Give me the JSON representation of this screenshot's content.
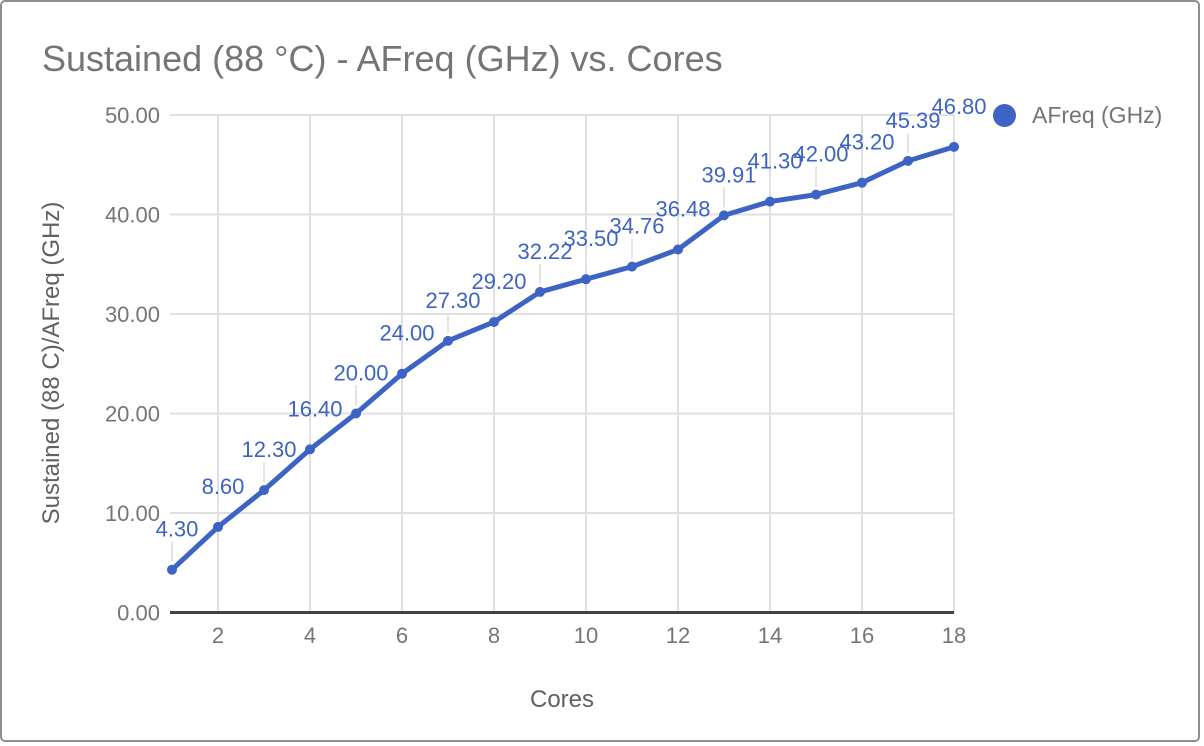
{
  "chart_data": {
    "type": "line",
    "title": "Sustained (88 °C) - AFreq (GHz) vs. Cores",
    "xlabel": "Cores",
    "ylabel": "Sustained (88 C)/AFreq (GHz)",
    "x": [
      1,
      2,
      3,
      4,
      5,
      6,
      7,
      8,
      9,
      10,
      11,
      12,
      13,
      14,
      15,
      16,
      17,
      18
    ],
    "series": [
      {
        "name": "AFreq (GHz)",
        "values": [
          4.3,
          8.6,
          12.3,
          16.4,
          20.0,
          24.0,
          27.3,
          29.2,
          32.22,
          33.5,
          34.76,
          36.48,
          39.91,
          41.3,
          42.0,
          43.2,
          45.39,
          46.8
        ]
      }
    ],
    "data_labels": [
      "4.30",
      "8.60",
      "12.30",
      "16.40",
      "20.00",
      "24.00",
      "27.30",
      "29.20",
      "32.22",
      "33.50",
      "34.76",
      "36.48",
      "39.91",
      "41.30",
      "42.00",
      "43.20",
      "45.39",
      "46.80"
    ],
    "xticks": [
      2,
      4,
      6,
      8,
      10,
      12,
      14,
      16,
      18
    ],
    "yticks": [
      0,
      10,
      20,
      30,
      40,
      50
    ],
    "ytick_labels": [
      "0.00",
      "10.00",
      "20.00",
      "30.00",
      "40.00",
      "50.00"
    ],
    "xlim": [
      1,
      18
    ],
    "ylim": [
      0,
      50
    ],
    "grid": true,
    "legend_position": "top-right",
    "marker": "circle",
    "colors": {
      "series": "#3d64c4",
      "data_label_text": "#3d64c4",
      "title_text": "#757575",
      "axis_title_text": "#616161",
      "tick_text": "#757575",
      "gridline": "#e0e0e0",
      "leader_line": "#e4e4e4",
      "axis_line": "#424242",
      "background": "#ffffff",
      "border": "#8e8e8e"
    }
  }
}
